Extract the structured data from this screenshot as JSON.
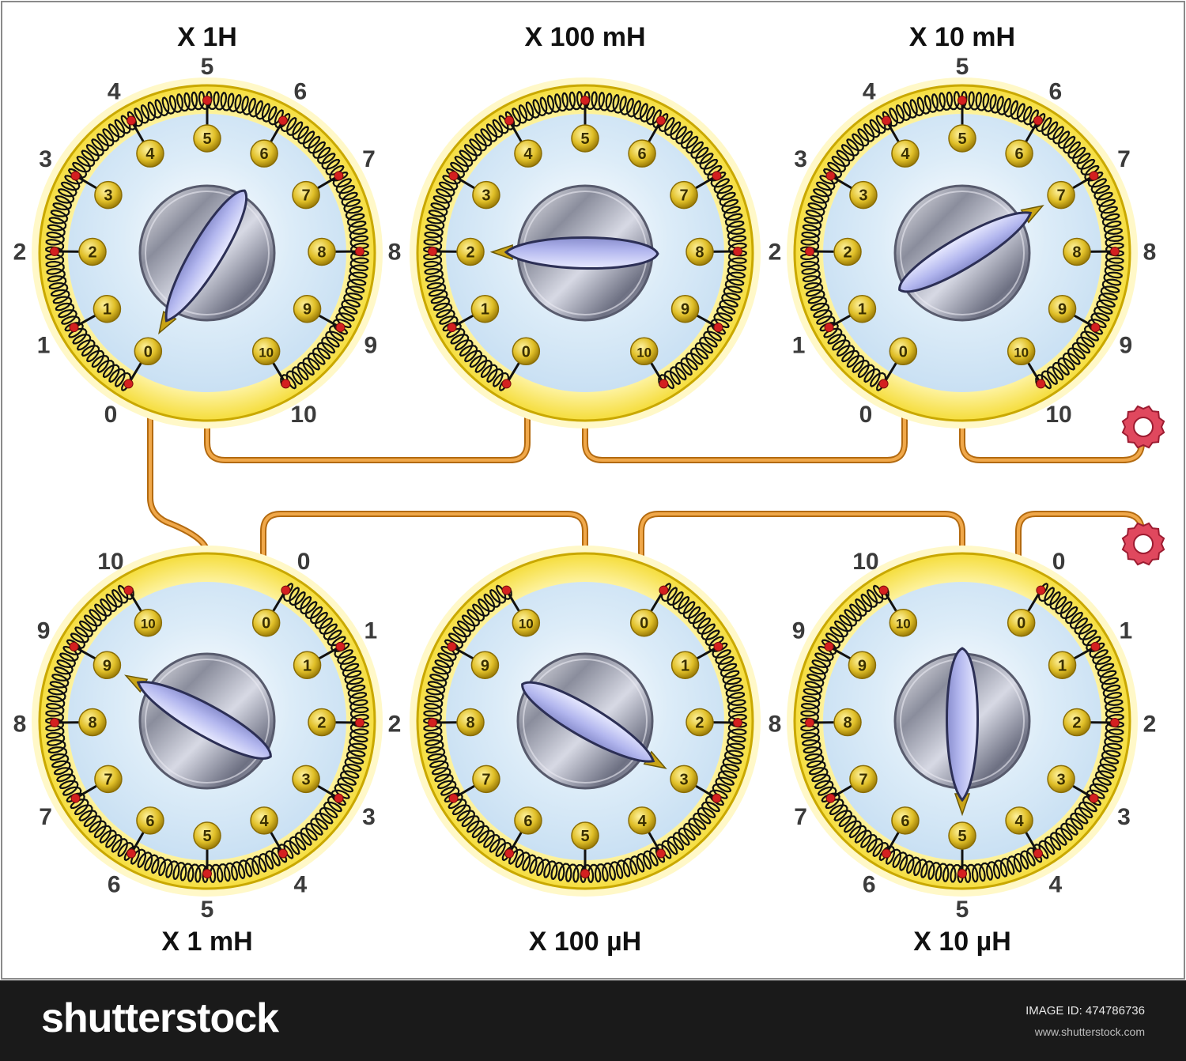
{
  "diagram": {
    "decades": [
      {
        "title": "X 1H",
        "setting": 0
      },
      {
        "title": "X 100 mH",
        "setting": 2
      },
      {
        "title": "X 10 mH",
        "setting": 7
      },
      {
        "title": "X 1 mH",
        "setting": 9
      },
      {
        "title": "X 100 µH",
        "setting": 3
      },
      {
        "title": "X 10 µH",
        "setting": 5
      }
    ],
    "switch_positions": [
      "0",
      "1",
      "2",
      "3",
      "4",
      "5",
      "6",
      "7",
      "8",
      "9",
      "10"
    ],
    "colors": {
      "board": "#fefefe",
      "border": "#8a8a8a",
      "dial_ring": "#f7e35c",
      "dial_ring_outline": "#c9a800",
      "dial_face": "#e3f1fb",
      "coil": "#111111",
      "tap_point": "#d42020",
      "contact": "#d4b21e",
      "knob": "#a9acbc",
      "pointer": "#bcc0f2",
      "wire": "#d98a1e",
      "binding_post": "#e0485e"
    }
  },
  "footer": {
    "logo": "shutterstock",
    "image_id": "IMAGE ID: 474786736",
    "url": "www.shutterstock.com"
  }
}
